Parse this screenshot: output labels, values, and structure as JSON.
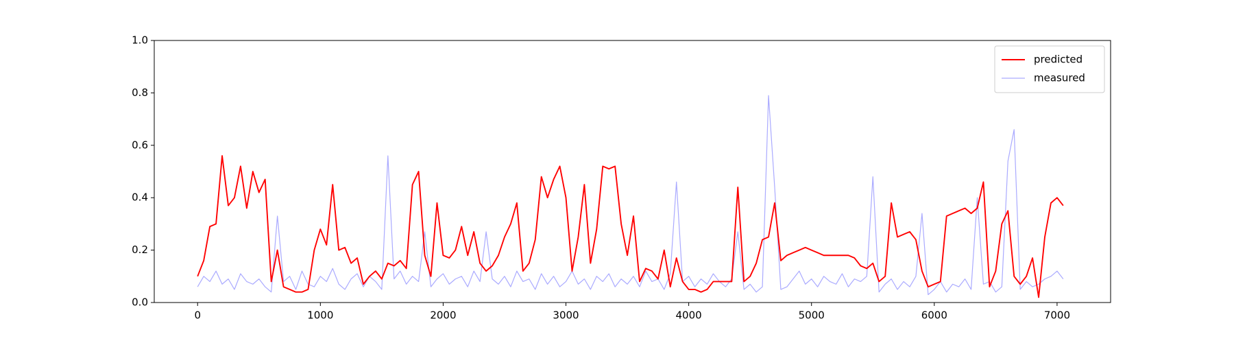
{
  "chart_data": {
    "type": "line",
    "x": [
      0,
      50,
      100,
      150,
      200,
      250,
      300,
      350,
      400,
      450,
      500,
      550,
      600,
      650,
      700,
      750,
      800,
      850,
      900,
      950,
      1000,
      1050,
      1100,
      1150,
      1200,
      1250,
      1300,
      1350,
      1400,
      1450,
      1500,
      1550,
      1600,
      1650,
      1700,
      1750,
      1800,
      1850,
      1900,
      1950,
      2000,
      2050,
      2100,
      2150,
      2200,
      2250,
      2300,
      2350,
      2400,
      2450,
      2500,
      2550,
      2600,
      2650,
      2700,
      2750,
      2800,
      2850,
      2900,
      2950,
      3000,
      3050,
      3100,
      3150,
      3200,
      3250,
      3300,
      3350,
      3400,
      3450,
      3500,
      3550,
      3600,
      3650,
      3700,
      3750,
      3800,
      3850,
      3900,
      3950,
      4000,
      4050,
      4100,
      4150,
      4200,
      4250,
      4300,
      4350,
      4400,
      4450,
      4500,
      4550,
      4600,
      4650,
      4700,
      4750,
      4800,
      4850,
      4900,
      4950,
      5000,
      5050,
      5100,
      5150,
      5200,
      5250,
      5300,
      5350,
      5400,
      5450,
      5500,
      5550,
      5600,
      5650,
      5700,
      5750,
      5800,
      5850,
      5900,
      5950,
      6000,
      6050,
      6100,
      6150,
      6200,
      6250,
      6300,
      6350,
      6400,
      6450,
      6500,
      6550,
      6600,
      6650,
      6700,
      6750,
      6800,
      6850,
      6900,
      6950,
      7000,
      7050
    ],
    "series": [
      {
        "name": "predicted",
        "color": "#ff0000",
        "values": [
          0.1,
          0.16,
          0.29,
          0.3,
          0.56,
          0.37,
          0.4,
          0.52,
          0.36,
          0.5,
          0.42,
          0.47,
          0.08,
          0.2,
          0.06,
          0.05,
          0.04,
          0.04,
          0.05,
          0.2,
          0.28,
          0.22,
          0.45,
          0.2,
          0.21,
          0.15,
          0.17,
          0.07,
          0.1,
          0.12,
          0.09,
          0.15,
          0.14,
          0.16,
          0.13,
          0.45,
          0.5,
          0.18,
          0.1,
          0.38,
          0.18,
          0.17,
          0.2,
          0.29,
          0.18,
          0.27,
          0.15,
          0.12,
          0.14,
          0.18,
          0.25,
          0.3,
          0.38,
          0.12,
          0.15,
          0.24,
          0.48,
          0.4,
          0.47,
          0.52,
          0.4,
          0.12,
          0.25,
          0.45,
          0.15,
          0.28,
          0.52,
          0.51,
          0.52,
          0.3,
          0.18,
          0.33,
          0.08,
          0.13,
          0.12,
          0.09,
          0.2,
          0.06,
          0.17,
          0.08,
          0.05,
          0.05,
          0.04,
          0.05,
          0.08,
          0.08,
          0.08,
          0.08,
          0.44,
          0.08,
          0.1,
          0.15,
          0.24,
          0.25,
          0.38,
          0.16,
          0.18,
          0.19,
          0.2,
          0.21,
          0.2,
          0.19,
          0.18,
          0.18,
          0.18,
          0.18,
          0.18,
          0.17,
          0.14,
          0.13,
          0.15,
          0.08,
          0.1,
          0.38,
          0.25,
          0.26,
          0.27,
          0.24,
          0.12,
          0.06,
          0.07,
          0.08,
          0.33,
          0.34,
          0.35,
          0.36,
          0.34,
          0.36,
          0.46,
          0.06,
          0.12,
          0.3,
          0.35,
          0.1,
          0.07,
          0.1,
          0.17,
          0.02,
          0.25,
          0.38,
          0.4,
          0.37
        ]
      },
      {
        "name": "measured",
        "color": "#aaaaff",
        "values": [
          0.06,
          0.1,
          0.08,
          0.12,
          0.07,
          0.09,
          0.05,
          0.11,
          0.08,
          0.07,
          0.09,
          0.06,
          0.04,
          0.33,
          0.08,
          0.1,
          0.05,
          0.12,
          0.07,
          0.06,
          0.1,
          0.08,
          0.13,
          0.07,
          0.05,
          0.09,
          0.11,
          0.06,
          0.1,
          0.08,
          0.05,
          0.56,
          0.09,
          0.12,
          0.07,
          0.1,
          0.08,
          0.27,
          0.06,
          0.09,
          0.11,
          0.07,
          0.09,
          0.1,
          0.06,
          0.12,
          0.08,
          0.27,
          0.09,
          0.07,
          0.1,
          0.06,
          0.12,
          0.08,
          0.09,
          0.05,
          0.11,
          0.07,
          0.1,
          0.06,
          0.08,
          0.12,
          0.07,
          0.09,
          0.05,
          0.1,
          0.08,
          0.11,
          0.06,
          0.09,
          0.07,
          0.1,
          0.06,
          0.12,
          0.08,
          0.09,
          0.05,
          0.11,
          0.46,
          0.08,
          0.1,
          0.06,
          0.09,
          0.07,
          0.11,
          0.08,
          0.06,
          0.09,
          0.27,
          0.05,
          0.07,
          0.04,
          0.06,
          0.79,
          0.44,
          0.05,
          0.06,
          0.09,
          0.12,
          0.07,
          0.09,
          0.06,
          0.1,
          0.08,
          0.07,
          0.11,
          0.06,
          0.09,
          0.08,
          0.1,
          0.48,
          0.04,
          0.07,
          0.09,
          0.05,
          0.08,
          0.06,
          0.1,
          0.34,
          0.03,
          0.05,
          0.08,
          0.04,
          0.07,
          0.06,
          0.09,
          0.05,
          0.4,
          0.07,
          0.08,
          0.04,
          0.06,
          0.54,
          0.66,
          0.05,
          0.08,
          0.06,
          0.07,
          0.09,
          0.1,
          0.12,
          0.09
        ]
      }
    ],
    "xlim": [
      -353,
      7436
    ],
    "ylim": [
      0,
      1
    ],
    "xticks": [
      0,
      1000,
      2000,
      3000,
      4000,
      5000,
      6000,
      7000
    ],
    "yticks": [
      {
        "value": 0,
        "label": "0.0"
      },
      {
        "value": 0.2,
        "label": "0.2"
      },
      {
        "value": 0.4,
        "label": "0.4"
      },
      {
        "value": 0.6,
        "label": "0.6"
      },
      {
        "value": 0.8,
        "label": "0.8"
      },
      {
        "value": 1,
        "label": "1.0"
      }
    ],
    "legend": "upper right"
  }
}
